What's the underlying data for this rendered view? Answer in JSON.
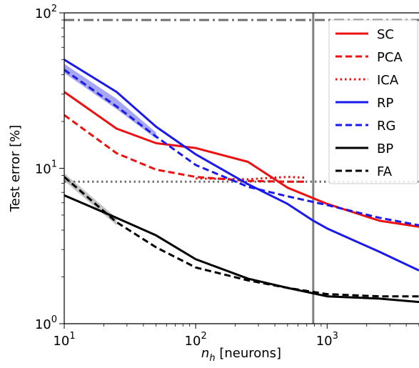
{
  "chart_data": {
    "type": "line",
    "xscale": "log",
    "yscale": "log",
    "xlim": [
      10,
      5000
    ],
    "ylim": [
      1,
      100
    ],
    "xlabel": {
      "base": "n",
      "sub": "h",
      "rest": " [neurons]"
    },
    "ylabel": "Test error [%]",
    "xticks": [
      {
        "value": 10,
        "base": "10",
        "exp": "1"
      },
      {
        "value": 100,
        "base": "10",
        "exp": "2"
      },
      {
        "value": 1000,
        "base": "10",
        "exp": "3"
      }
    ],
    "yticks": [
      {
        "value": 1,
        "base": "10",
        "exp": "0"
      },
      {
        "value": 10,
        "base": "10",
        "exp": "1"
      },
      {
        "value": 100,
        "base": "10",
        "exp": "2"
      }
    ],
    "grid": false,
    "legend_position": "top-right",
    "reference_lines": [
      {
        "orientation": "horizontal",
        "value": 90,
        "color": "#707070",
        "dash": "dashdot"
      },
      {
        "orientation": "horizontal",
        "value": 8.2,
        "color": "#707070",
        "dash": "dotted"
      },
      {
        "orientation": "vertical",
        "value": 784,
        "color": "#808080",
        "dash": "solid"
      }
    ],
    "bands": [
      {
        "color": "#8888ee",
        "x": [
          10,
          25,
          50
        ],
        "lower": [
          41,
          24,
          15.5
        ],
        "upper": [
          47,
          28,
          17
        ]
      },
      {
        "color": "#b0b0b0",
        "x": [
          10,
          25
        ],
        "lower": [
          8.3,
          4.3
        ],
        "upper": [
          9.3,
          4.8
        ]
      }
    ],
    "series": [
      {
        "name": "SC",
        "color": "#ee1111",
        "dash": "solid",
        "x": [
          10,
          25,
          50,
          100,
          250,
          500,
          1000,
          2500,
          5000
        ],
        "y": [
          31,
          18,
          14.5,
          13.5,
          11,
          7.5,
          5.9,
          4.6,
          4.2
        ]
      },
      {
        "name": "PCA",
        "color": "#ee1111",
        "dash": "dashed",
        "x": [
          10,
          25,
          50,
          100,
          250,
          500,
          700
        ],
        "y": [
          22,
          12.5,
          9.8,
          8.8,
          8.3,
          8.2,
          8.2
        ]
      },
      {
        "name": "ICA",
        "color": "#ee1111",
        "dash": "dotted",
        "x": [
          100,
          250,
          500,
          700
        ],
        "y": [
          8.6,
          8.5,
          8.8,
          8.7
        ]
      },
      {
        "name": "RP",
        "color": "#1a1aee",
        "dash": "solid",
        "x": [
          10,
          25,
          50,
          100,
          250,
          500,
          784,
          1000,
          2500,
          5000
        ],
        "y": [
          50,
          31,
          18.5,
          12.3,
          7.9,
          5.9,
          4.6,
          4.1,
          2.9,
          2.2
        ]
      },
      {
        "name": "RG",
        "color": "#1a1aee",
        "dash": "dashed",
        "x": [
          10,
          25,
          50,
          100,
          250,
          500,
          1000,
          2500,
          5000
        ],
        "y": [
          43,
          25,
          16,
          10.5,
          7.6,
          6.6,
          5.8,
          4.8,
          4.3
        ]
      },
      {
        "name": "BP",
        "color": "#000000",
        "dash": "solid",
        "x": [
          10,
          25,
          50,
          100,
          250,
          500,
          1000,
          2500,
          5000
        ],
        "y": [
          6.7,
          4.8,
          3.7,
          2.6,
          1.95,
          1.7,
          1.5,
          1.45,
          1.38
        ]
      },
      {
        "name": "FA",
        "color": "#000000",
        "dash": "dashed",
        "x": [
          10,
          25,
          50,
          100,
          250,
          500,
          1000,
          2500,
          5000
        ],
        "y": [
          8.8,
          4.5,
          3.1,
          2.3,
          1.9,
          1.7,
          1.55,
          1.5,
          1.5
        ]
      }
    ]
  }
}
